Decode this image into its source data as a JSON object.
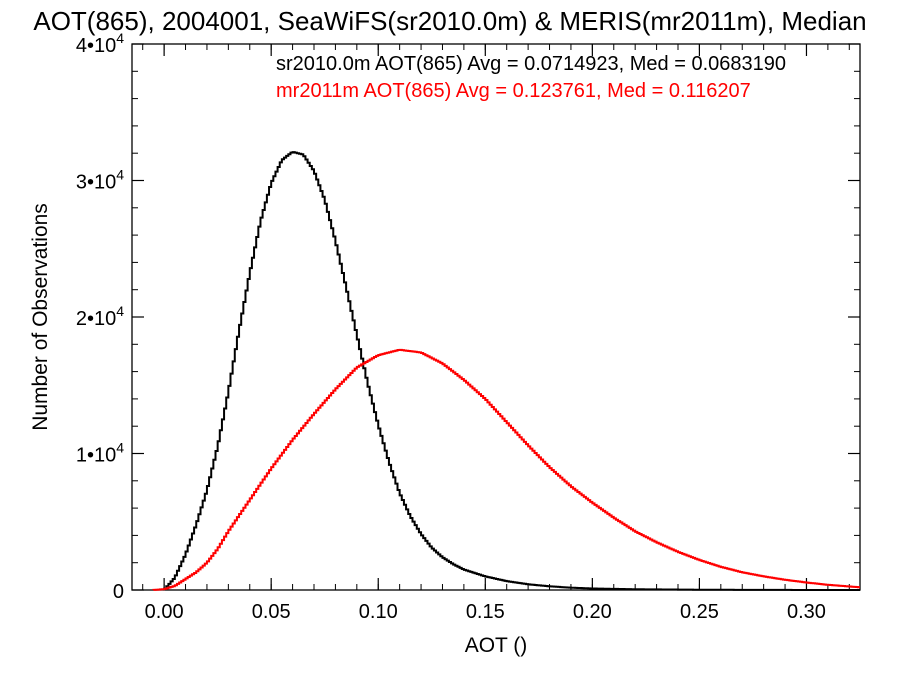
{
  "chart_data": {
    "type": "line",
    "title": "AOT(865), 2004001, SeaWiFS(sr2010.0m) & MERIS(mr2011m), Median",
    "xlabel": "AOT ()",
    "ylabel": "Number of Observations",
    "xlim": [
      -0.015,
      0.325
    ],
    "ylim": [
      0,
      40000
    ],
    "x_ticks": [
      {
        "value": 0.0,
        "label": "0.00"
      },
      {
        "value": 0.05,
        "label": "0.05"
      },
      {
        "value": 0.1,
        "label": "0.10"
      },
      {
        "value": 0.15,
        "label": "0.15"
      },
      {
        "value": 0.2,
        "label": "0.20"
      },
      {
        "value": 0.25,
        "label": "0.25"
      },
      {
        "value": 0.3,
        "label": "0.30"
      }
    ],
    "y_ticks": [
      {
        "value": 0,
        "mantissa": "0",
        "exponent": ""
      },
      {
        "value": 10000,
        "mantissa": "1•10",
        "exponent": "4"
      },
      {
        "value": 20000,
        "mantissa": "2•10",
        "exponent": "4"
      },
      {
        "value": 30000,
        "mantissa": "3•10",
        "exponent": "4"
      },
      {
        "value": 40000,
        "mantissa": "4•10",
        "exponent": "4"
      }
    ],
    "grid": false,
    "legend_position": "top-right",
    "series": [
      {
        "label": "sr2010.0m AOT(865) Avg = 0.0714923, Med = 0.0683190",
        "color": "#000000",
        "x": [
          0.0,
          0.005,
          0.01,
          0.015,
          0.02,
          0.025,
          0.03,
          0.035,
          0.04,
          0.045,
          0.05,
          0.055,
          0.06,
          0.065,
          0.07,
          0.075,
          0.08,
          0.085,
          0.09,
          0.095,
          0.1,
          0.105,
          0.11,
          0.115,
          0.12,
          0.125,
          0.13,
          0.135,
          0.14,
          0.15,
          0.16,
          0.17,
          0.18,
          0.19,
          0.2,
          0.22,
          0.25,
          0.28,
          0.3,
          0.325
        ],
        "y": [
          0,
          900,
          2600,
          4800,
          7300,
          10500,
          14500,
          19000,
          23200,
          27000,
          29800,
          31500,
          32100,
          31900,
          30700,
          28600,
          25600,
          22200,
          18700,
          15200,
          12100,
          9400,
          7100,
          5400,
          4100,
          3100,
          2400,
          1900,
          1500,
          1000,
          650,
          420,
          270,
          170,
          110,
          55,
          20,
          8,
          3,
          0
        ]
      },
      {
        "label": "mr2011m AOT(865) Avg = 0.123761, Med = 0.116207",
        "color": "#ff0000",
        "x": [
          -0.005,
          0.0,
          0.005,
          0.01,
          0.015,
          0.02,
          0.025,
          0.03,
          0.04,
          0.05,
          0.06,
          0.07,
          0.08,
          0.09,
          0.1,
          0.11,
          0.12,
          0.13,
          0.14,
          0.15,
          0.16,
          0.17,
          0.18,
          0.19,
          0.2,
          0.21,
          0.22,
          0.23,
          0.24,
          0.25,
          0.26,
          0.27,
          0.28,
          0.29,
          0.3,
          0.31,
          0.325
        ],
        "y": [
          0,
          60,
          300,
          800,
          1300,
          2000,
          3000,
          4300,
          6600,
          8900,
          11000,
          12900,
          14700,
          16300,
          17200,
          17600,
          17400,
          16600,
          15400,
          14000,
          12300,
          10600,
          9000,
          7600,
          6400,
          5300,
          4300,
          3500,
          2800,
          2200,
          1700,
          1300,
          1000,
          750,
          550,
          380,
          200
        ]
      }
    ]
  }
}
